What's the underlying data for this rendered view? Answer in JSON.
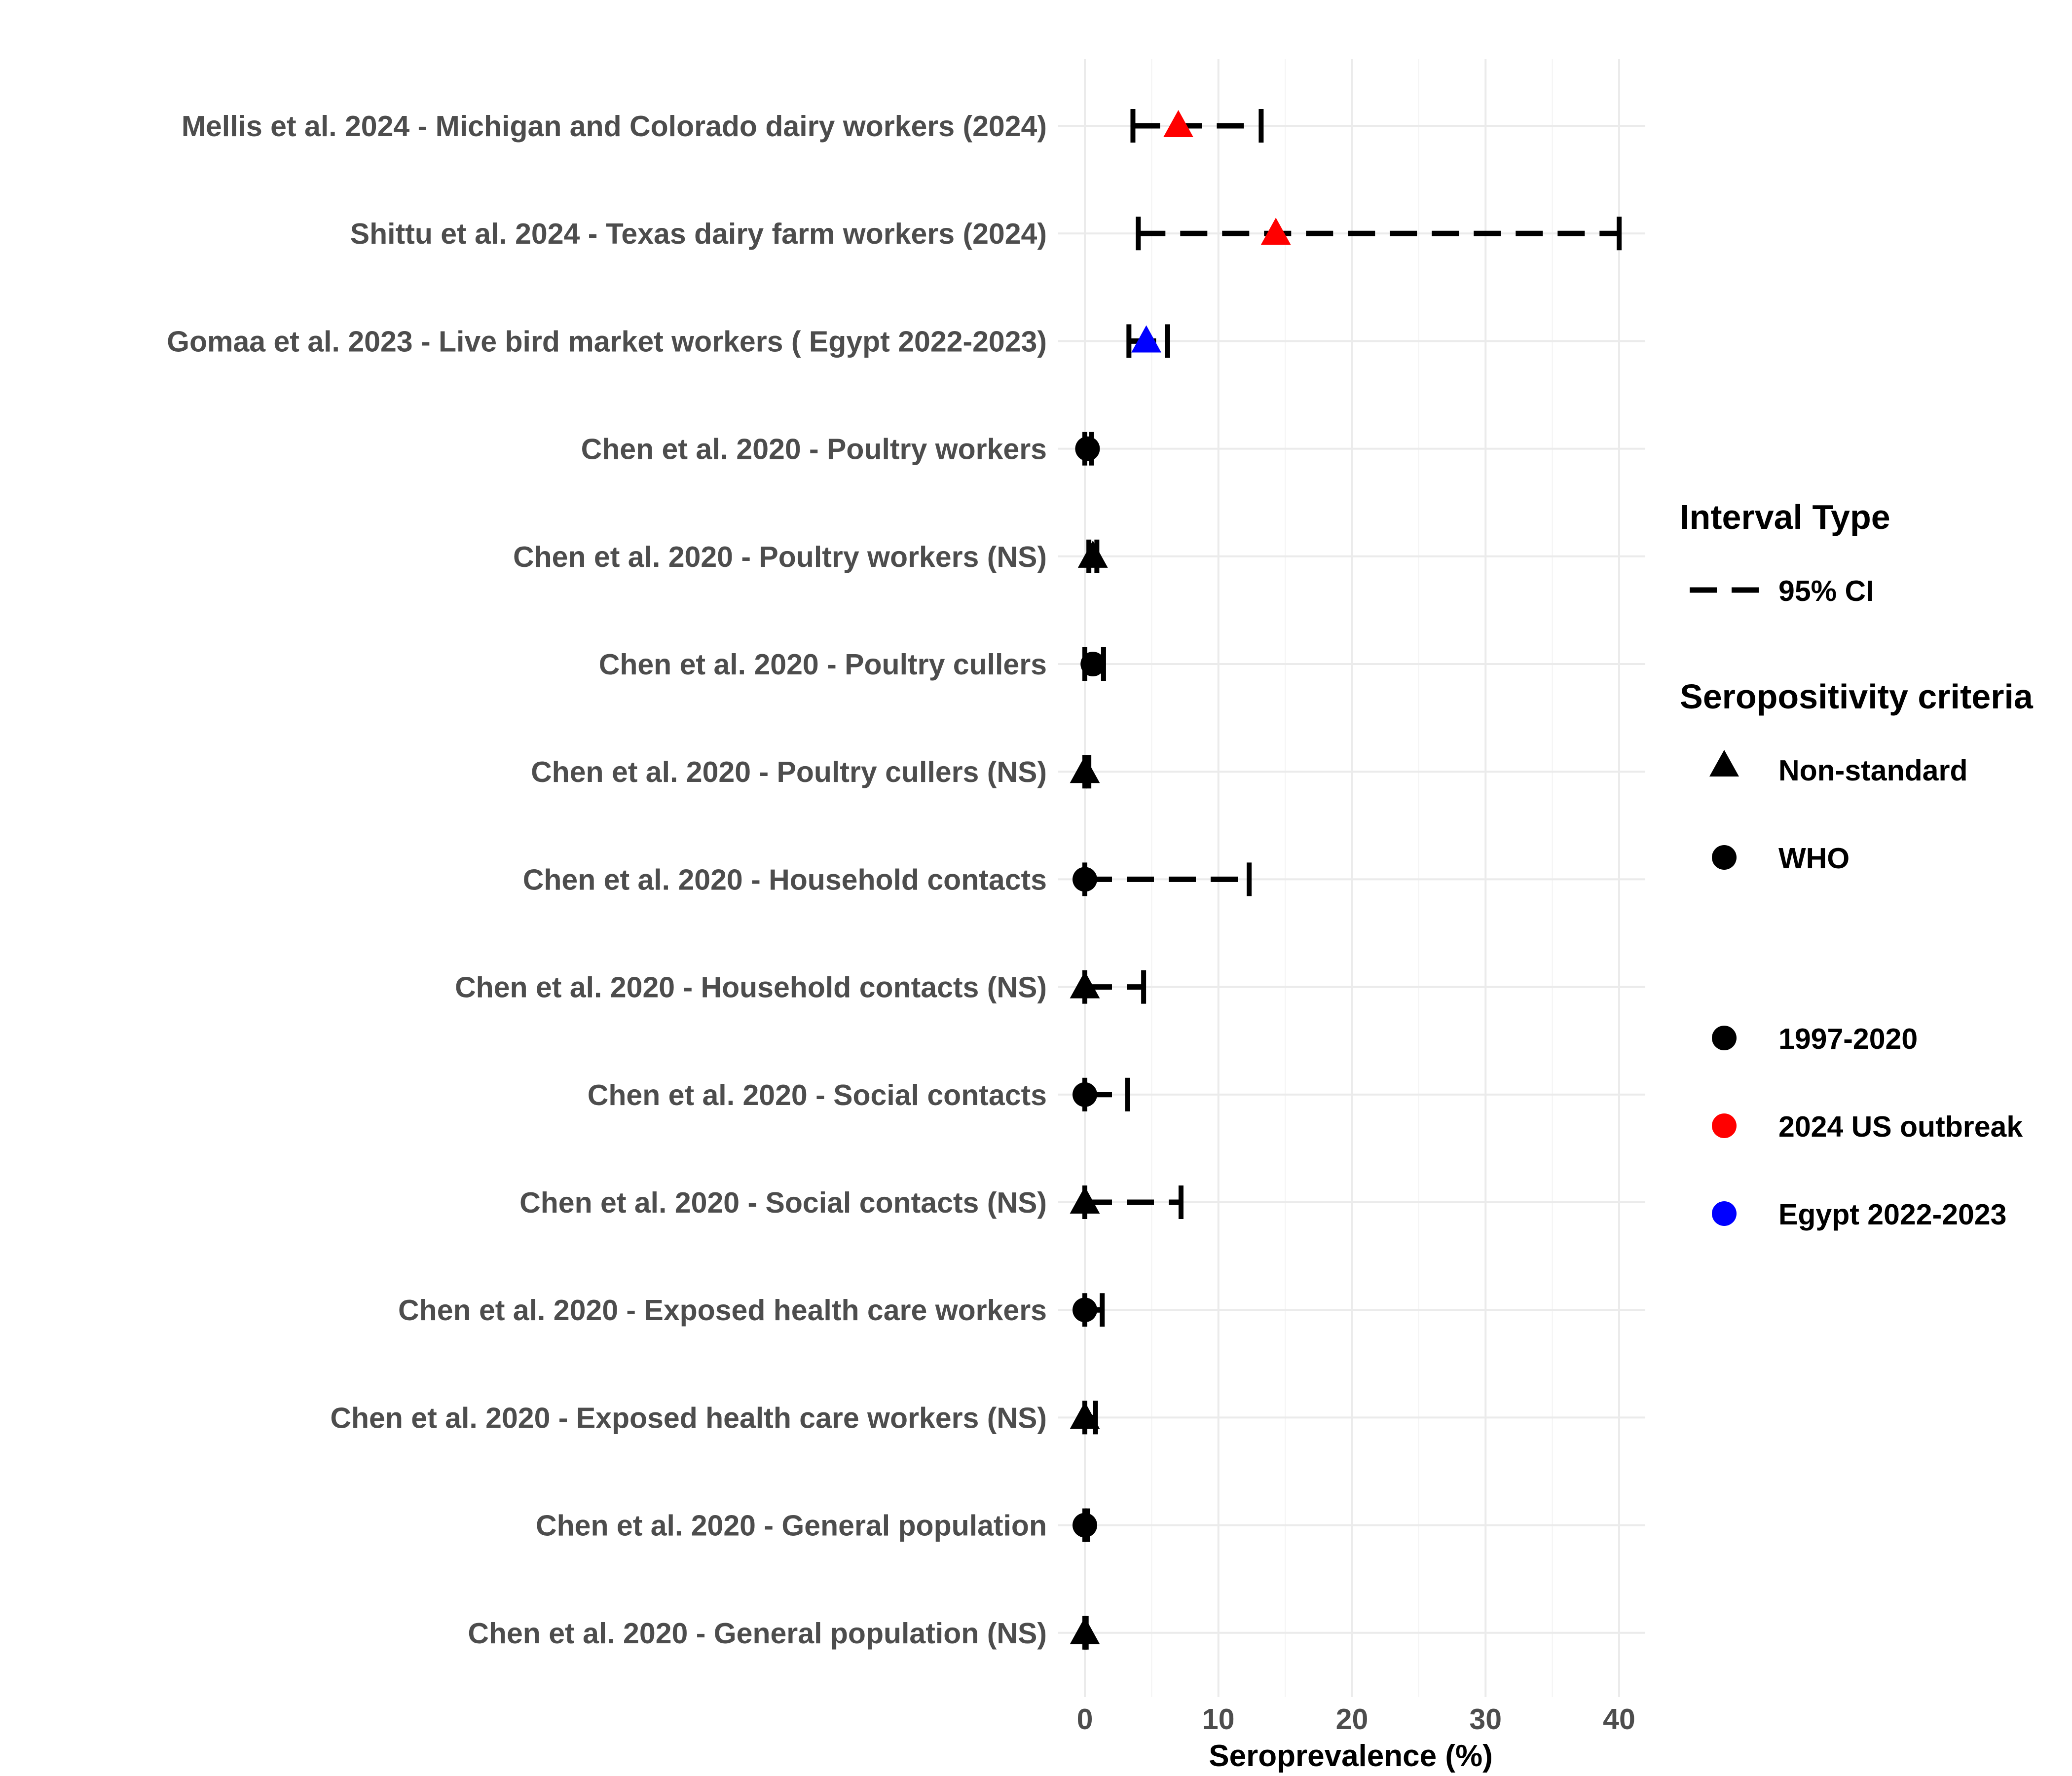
{
  "chart_data": {
    "type": "forest",
    "xlabel": "Seroprevalence (%)",
    "xlim": [
      -1,
      42
    ],
    "xticks": [
      0,
      10,
      20,
      30,
      40
    ],
    "grid": true,
    "legend_position": "right",
    "interval_legend": {
      "title": "Interval Type",
      "items": [
        {
          "label": "95% CI",
          "style": "dashed"
        }
      ]
    },
    "shape_legend": {
      "title": "Seropositivity criteria",
      "items": [
        {
          "label": "Non-standard",
          "shape": "triangle"
        },
        {
          "label": "WHO",
          "shape": "circle"
        }
      ]
    },
    "color_legend": {
      "items": [
        {
          "label": "1997-2020",
          "color": "#000000"
        },
        {
          "label": "2024 US outbreak",
          "color": "#ff0000"
        },
        {
          "label": "Egypt 2022-2023",
          "color": "#0000ff"
        }
      ]
    },
    "rows": [
      {
        "label": "Mellis et al. 2024 - Michigan and Colorado dairy workers (2024)",
        "estimate": 7.0,
        "lower": 3.6,
        "upper": 13.2,
        "shape": "triangle",
        "group": "2024 US outbreak"
      },
      {
        "label": "Shittu et al. 2024 - Texas dairy farm workers (2024)",
        "estimate": 14.3,
        "lower": 4.0,
        "upper": 40.0,
        "shape": "triangle",
        "group": "2024 US outbreak"
      },
      {
        "label": "Gomaa et al. 2023 - Live bird market workers ( Egypt 2022-2023)",
        "estimate": 4.6,
        "lower": 3.3,
        "upper": 6.2,
        "shape": "triangle",
        "group": "Egypt 2022-2023"
      },
      {
        "label": "Chen et al. 2020 - Poultry workers",
        "estimate": 0.2,
        "lower": 0.0,
        "upper": 0.5,
        "shape": "circle",
        "group": "1997-2020"
      },
      {
        "label": "Chen et al. 2020 - Poultry workers (NS)",
        "estimate": 0.6,
        "lower": 0.3,
        "upper": 0.9,
        "shape": "triangle",
        "group": "1997-2020"
      },
      {
        "label": "Chen et al. 2020 - Poultry cullers",
        "estimate": 0.6,
        "lower": 0.0,
        "upper": 1.4,
        "shape": "circle",
        "group": "1997-2020"
      },
      {
        "label": "Chen et al. 2020 - Poultry cullers (NS)",
        "estimate": 0.0,
        "lower": 0.0,
        "upper": 0.3,
        "shape": "triangle",
        "group": "1997-2020"
      },
      {
        "label": "Chen et al. 2020 - Household contacts",
        "estimate": 0.0,
        "lower": 0.0,
        "upper": 12.3,
        "shape": "circle",
        "group": "1997-2020"
      },
      {
        "label": "Chen et al. 2020 - Household contacts (NS)",
        "estimate": 0.0,
        "lower": 0.0,
        "upper": 4.4,
        "shape": "triangle",
        "group": "1997-2020"
      },
      {
        "label": "Chen et al. 2020 - Social contacts",
        "estimate": 0.0,
        "lower": 0.0,
        "upper": 3.2,
        "shape": "circle",
        "group": "1997-2020"
      },
      {
        "label": "Chen et al. 2020 - Social contacts (NS)",
        "estimate": 0.0,
        "lower": 0.0,
        "upper": 7.2,
        "shape": "triangle",
        "group": "1997-2020"
      },
      {
        "label": "Chen et al. 2020 - Exposed health care workers",
        "estimate": 0.0,
        "lower": 0.0,
        "upper": 1.3,
        "shape": "circle",
        "group": "1997-2020"
      },
      {
        "label": "Chen et al. 2020 - Exposed health care workers (NS)",
        "estimate": 0.0,
        "lower": 0.0,
        "upper": 0.8,
        "shape": "triangle",
        "group": "1997-2020"
      },
      {
        "label": "Chen et al. 2020 - General population",
        "estimate": 0.0,
        "lower": 0.0,
        "upper": 0.2,
        "shape": "circle",
        "group": "1997-2020"
      },
      {
        "label": "Chen et al. 2020 - General population (NS)",
        "estimate": 0.0,
        "lower": 0.0,
        "upper": 0.1,
        "shape": "triangle",
        "group": "1997-2020"
      }
    ]
  }
}
